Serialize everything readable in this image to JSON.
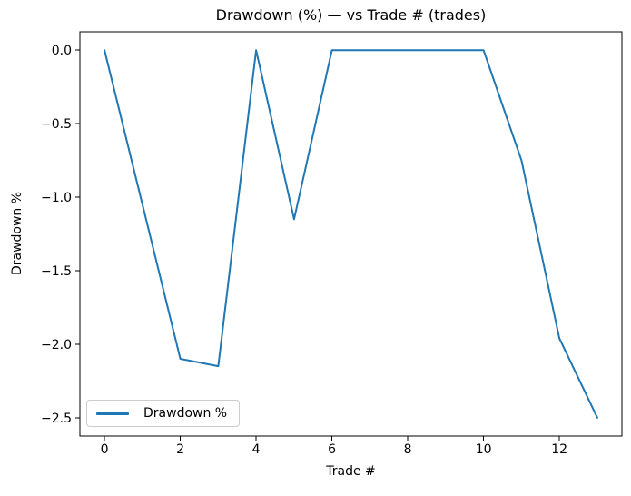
{
  "chart_data": {
    "type": "line",
    "title": "Drawdown (%) — vs Trade # (trades)",
    "xlabel": "Trade #",
    "ylabel": "Drawdown %",
    "x": [
      0,
      1,
      2,
      3,
      4,
      5,
      6,
      7,
      8,
      9,
      10,
      11,
      12,
      13
    ],
    "series": [
      {
        "name": "Drawdown %",
        "color": "#1f77b4",
        "values": [
          0.0,
          -1.05,
          -2.1,
          -2.15,
          0.0,
          -1.15,
          0.0,
          0.0,
          0.0,
          0.0,
          0.0,
          -0.75,
          -1.96,
          -2.5
        ]
      }
    ],
    "xlim": [
      -0.65,
      13.65
    ],
    "ylim": [
      -2.625,
      0.125
    ],
    "xticks": {
      "values": [
        0,
        2,
        4,
        6,
        8,
        10,
        12
      ],
      "labels": [
        "0",
        "2",
        "4",
        "6",
        "8",
        "10",
        "12"
      ]
    },
    "yticks": {
      "values": [
        0.0,
        -0.5,
        -1.0,
        -1.5,
        -2.0,
        -2.5
      ],
      "labels": [
        "0.0",
        "−0.5",
        "−1.0",
        "−1.5",
        "−2.0",
        "−2.5"
      ]
    },
    "grid": false,
    "legend": {
      "position": "lower left",
      "entries": [
        "Drawdown %"
      ]
    }
  },
  "legend": {
    "label": "Drawdown %"
  },
  "colors": {
    "line": "#1f77b4",
    "spine": "#000000",
    "tick": "#000000",
    "text": "#000000",
    "legend_border": "#cccccc",
    "background": "#ffffff"
  }
}
